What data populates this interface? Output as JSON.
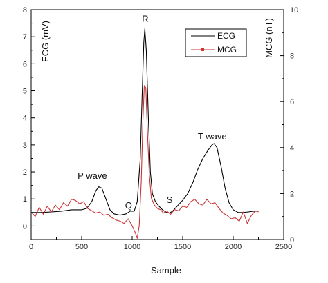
{
  "chart_data": {
    "type": "line",
    "xlabel": "Sample",
    "ylabel_left": "ECG (mV)",
    "ylabel_right": "MCG (nT)",
    "xlim": [
      0,
      2500
    ],
    "ylim_left": [
      -0.5,
      8
    ],
    "ylim_right": [
      0,
      10
    ],
    "x_ticks": [
      0,
      500,
      1000,
      1500,
      2000,
      2500
    ],
    "y_ticks_left": [
      0,
      1,
      2,
      3,
      4,
      5,
      6,
      7,
      8
    ],
    "y_ticks_right": [
      0,
      2,
      4,
      6,
      8,
      10
    ],
    "grid": false,
    "legend_position": "top-right",
    "series": [
      {
        "name": "ECG",
        "axis": "left",
        "color": "#000000",
        "points": [
          [
            0,
            0.5
          ],
          [
            100,
            0.5
          ],
          [
            200,
            0.52
          ],
          [
            300,
            0.55
          ],
          [
            400,
            0.6
          ],
          [
            500,
            0.6
          ],
          [
            550,
            0.65
          ],
          [
            600,
            0.9
          ],
          [
            640,
            1.3
          ],
          [
            670,
            1.45
          ],
          [
            700,
            1.4
          ],
          [
            740,
            1.0
          ],
          [
            780,
            0.6
          ],
          [
            820,
            0.45
          ],
          [
            880,
            0.4
          ],
          [
            940,
            0.45
          ],
          [
            980,
            0.55
          ],
          [
            1020,
            0.55
          ],
          [
            1050,
            0.9
          ],
          [
            1080,
            2.5
          ],
          [
            1100,
            5.0
          ],
          [
            1115,
            6.8
          ],
          [
            1125,
            7.3
          ],
          [
            1140,
            6.5
          ],
          [
            1160,
            4.0
          ],
          [
            1180,
            2.0
          ],
          [
            1200,
            1.2
          ],
          [
            1230,
            0.9
          ],
          [
            1260,
            0.75
          ],
          [
            1300,
            0.6
          ],
          [
            1340,
            0.5
          ],
          [
            1370,
            0.48
          ],
          [
            1400,
            0.55
          ],
          [
            1450,
            0.75
          ],
          [
            1500,
            0.95
          ],
          [
            1550,
            1.2
          ],
          [
            1600,
            1.6
          ],
          [
            1650,
            2.1
          ],
          [
            1700,
            2.5
          ],
          [
            1750,
            2.8
          ],
          [
            1790,
            3.0
          ],
          [
            1810,
            3.05
          ],
          [
            1840,
            2.9
          ],
          [
            1880,
            2.2
          ],
          [
            1920,
            1.4
          ],
          [
            1960,
            0.85
          ],
          [
            2000,
            0.6
          ],
          [
            2050,
            0.5
          ],
          [
            2100,
            0.5
          ],
          [
            2150,
            0.52
          ],
          [
            2200,
            0.55
          ],
          [
            2250,
            0.55
          ]
        ]
      },
      {
        "name": "MCG",
        "axis": "right",
        "color": "#cc3333",
        "points": [
          [
            0,
            1.2
          ],
          [
            40,
            1.0
          ],
          [
            80,
            1.4
          ],
          [
            120,
            1.1
          ],
          [
            160,
            1.45
          ],
          [
            200,
            1.2
          ],
          [
            240,
            1.5
          ],
          [
            280,
            1.3
          ],
          [
            320,
            1.6
          ],
          [
            360,
            1.45
          ],
          [
            400,
            1.75
          ],
          [
            440,
            1.7
          ],
          [
            480,
            1.55
          ],
          [
            520,
            1.65
          ],
          [
            560,
            1.35
          ],
          [
            600,
            1.25
          ],
          [
            640,
            1.15
          ],
          [
            680,
            1.2
          ],
          [
            720,
            1.05
          ],
          [
            760,
            1.1
          ],
          [
            800,
            0.95
          ],
          [
            840,
            0.85
          ],
          [
            880,
            0.8
          ],
          [
            920,
            0.7
          ],
          [
            960,
            0.9
          ],
          [
            1000,
            0.6
          ],
          [
            1030,
            0.3
          ],
          [
            1050,
            0.05
          ],
          [
            1070,
            0.6
          ],
          [
            1090,
            2.5
          ],
          [
            1105,
            5.0
          ],
          [
            1120,
            6.7
          ],
          [
            1135,
            6.6
          ],
          [
            1150,
            4.8
          ],
          [
            1170,
            2.8
          ],
          [
            1190,
            1.8
          ],
          [
            1220,
            1.5
          ],
          [
            1250,
            1.35
          ],
          [
            1280,
            1.3
          ],
          [
            1310,
            1.15
          ],
          [
            1340,
            1.25
          ],
          [
            1380,
            1.1
          ],
          [
            1420,
            1.3
          ],
          [
            1460,
            1.25
          ],
          [
            1500,
            1.45
          ],
          [
            1540,
            1.4
          ],
          [
            1580,
            1.65
          ],
          [
            1620,
            1.75
          ],
          [
            1660,
            1.55
          ],
          [
            1700,
            1.5
          ],
          [
            1740,
            1.75
          ],
          [
            1780,
            1.55
          ],
          [
            1820,
            1.6
          ],
          [
            1860,
            1.35
          ],
          [
            1900,
            1.15
          ],
          [
            1940,
            1.05
          ],
          [
            1980,
            0.9
          ],
          [
            2020,
            0.95
          ],
          [
            2060,
            0.8
          ],
          [
            2100,
            1.2
          ],
          [
            2140,
            0.7
          ],
          [
            2180,
            1.05
          ],
          [
            2220,
            1.25
          ],
          [
            2250,
            1.2
          ]
        ]
      }
    ],
    "annotations": [
      {
        "text": "R",
        "x": 1130,
        "y": 7.55
      },
      {
        "text": "P wave",
        "x": 460,
        "y": 1.75
      },
      {
        "text": "Q",
        "x": 930,
        "y": 0.65
      },
      {
        "text": "S",
        "x": 1340,
        "y": 0.85
      },
      {
        "text": "T wave",
        "x": 1650,
        "y": 3.2
      }
    ]
  }
}
